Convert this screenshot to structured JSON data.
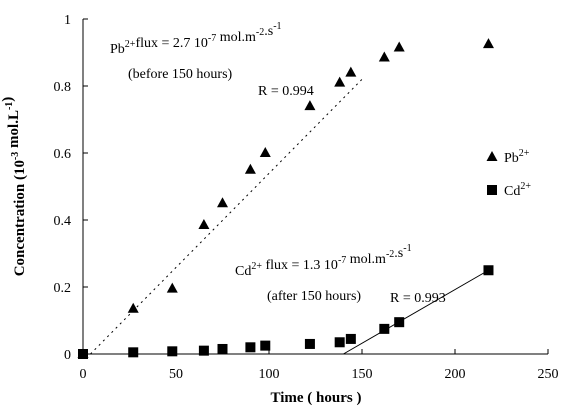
{
  "chart_data": {
    "type": "scatter",
    "xlabel": "Time ( hours )",
    "ylabel": {
      "text": [
        "Concentration (10",
        " mol.L",
        ")"
      ],
      "sup": [
        "-3",
        "-1"
      ]
    },
    "xlim": [
      0,
      250
    ],
    "xticks": [
      0,
      50,
      100,
      150,
      200,
      250
    ],
    "ylim": [
      0,
      1
    ],
    "yticks": [
      0,
      0.2,
      0.4,
      0.6,
      0.8,
      1
    ],
    "series": [
      {
        "name": "Pb",
        "charge": "2+",
        "marker": "triangle",
        "color": "#000000",
        "x": [
          0,
          27,
          48,
          65,
          75,
          90,
          98,
          122,
          138,
          144,
          162,
          170,
          218
        ],
        "values": [
          0,
          0.135,
          0.195,
          0.385,
          0.45,
          0.55,
          0.6,
          0.74,
          0.81,
          0.84,
          0.885,
          0.915,
          0.925
        ]
      },
      {
        "name": "Cd",
        "charge": "2+",
        "marker": "square",
        "color": "#000000",
        "x": [
          0,
          27,
          48,
          65,
          75,
          90,
          98,
          122,
          138,
          144,
          162,
          170,
          218
        ],
        "values": [
          0,
          0.005,
          0.008,
          0.01,
          0.015,
          0.02,
          0.025,
          0.03,
          0.035,
          0.045,
          0.075,
          0.095,
          0.25
        ]
      }
    ],
    "fits": [
      {
        "x": [
          4,
          150
        ],
        "values": [
          0,
          0.82
        ],
        "dash": true,
        "label": "R = 0.994"
      },
      {
        "x": [
          140,
          218
        ],
        "values": [
          0,
          0.25
        ],
        "dash": false,
        "label": "R = 0.993"
      }
    ],
    "annotations": [
      {
        "text": [
          "Pb",
          "flux = 2.7 10",
          " mol.m",
          ".s",
          ""
        ],
        "sup": [
          "2+",
          "-7",
          "-2",
          "-1"
        ],
        "line2": "(before 150 hours)"
      },
      {
        "text": [
          "Cd",
          " flux = 1.3 10",
          " mol.m",
          ".s",
          ""
        ],
        "sup": [
          "2+",
          "-7",
          "-2",
          "-1"
        ],
        "line2": "(after 150 hours)"
      }
    ]
  }
}
